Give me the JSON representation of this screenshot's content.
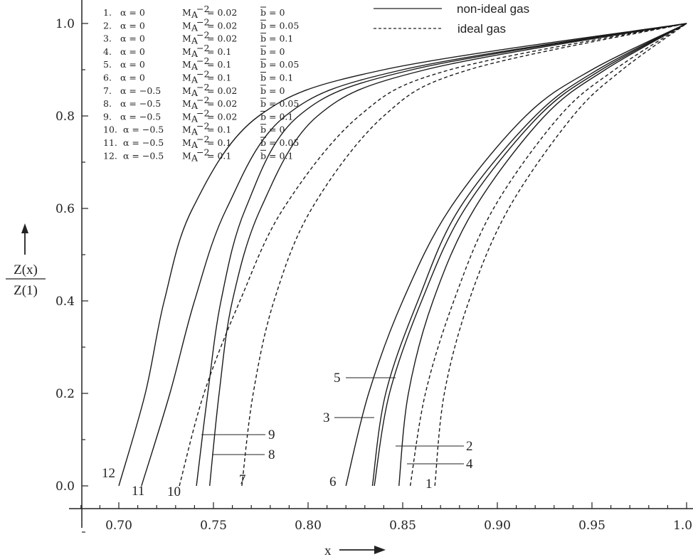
{
  "chart_data": {
    "type": "line",
    "title": "",
    "xlabel": "x",
    "ylabel_num": "Z(x)",
    "ylabel_den": "Z(1)",
    "xlim": [
      0.68,
      1.0
    ],
    "ylim": [
      0.0,
      1.0
    ],
    "x_ticks": [
      "0.70",
      "0.75",
      "0.80",
      "0.85",
      "0.90",
      "0.95",
      "1.00"
    ],
    "y_ticks": [
      "0.0",
      "0.2",
      "0.4",
      "0.6",
      "0.8",
      "1.0"
    ],
    "legend": {
      "placement": "top-center",
      "solid_label": "non-ideal gas",
      "dashed_label": "ideal gas"
    },
    "param_table": {
      "m_symbol": "M",
      "m_sub": "A",
      "m_sup": "−2",
      "b_symbol": "b",
      "rows": [
        {
          "num": "1.",
          "alpha": "α = 0",
          "m": "= 0.02",
          "b": "= 0"
        },
        {
          "num": "2.",
          "alpha": "α = 0",
          "m": "= 0.02",
          "b": "= 0.05"
        },
        {
          "num": "3.",
          "alpha": "α = 0",
          "m": "= 0.02",
          "b": "= 0.1"
        },
        {
          "num": "4.",
          "alpha": "α = 0",
          "m": "= 0.1",
          "b": "= 0"
        },
        {
          "num": "5.",
          "alpha": "α = 0",
          "m": "= 0.1",
          "b": "= 0.05"
        },
        {
          "num": "6.",
          "alpha": "α = 0",
          "m": "= 0.1",
          "b": "= 0.1"
        },
        {
          "num": "7.",
          "alpha": "α = −0.5",
          "m": "= 0.02",
          "b": "= 0"
        },
        {
          "num": "8.",
          "alpha": "α = −0.5",
          "m": "= 0.02",
          "b": "= 0.05"
        },
        {
          "num": "9.",
          "alpha": "α = −0.5",
          "m": "= 0.02",
          "b": "= 0.1"
        },
        {
          "num": "10.",
          "alpha": "α = −0.5",
          "m": "= 0.1",
          "b": "= 0"
        },
        {
          "num": "11.",
          "alpha": "α = −0.5",
          "m": "= 0.1",
          "b": "= 0.05"
        },
        {
          "num": "12.",
          "alpha": "α = −0.5",
          "m": "= 0.1",
          "b": "= 0.1"
        }
      ]
    },
    "z_levels": [
      0,
      0.2,
      0.4,
      0.6,
      0.8,
      0.9,
      1.0
    ],
    "series": [
      {
        "name": "1",
        "dashed": true,
        "x": [
          0.867,
          0.872,
          0.885,
          0.906,
          0.94,
          0.966,
          1.0
        ]
      },
      {
        "name": "2",
        "dashed": false,
        "x": [
          0.848,
          0.853,
          0.866,
          0.888,
          0.925,
          0.957,
          1.0
        ]
      },
      {
        "name": "3",
        "dashed": false,
        "x": [
          0.834,
          0.841,
          0.858,
          0.88,
          0.92,
          0.953,
          1.0
        ]
      },
      {
        "name": "4",
        "dashed": true,
        "x": [
          0.854,
          0.862,
          0.877,
          0.898,
          0.933,
          0.962,
          1.0
        ]
      },
      {
        "name": "5",
        "dashed": false,
        "x": [
          0.835,
          0.843,
          0.86,
          0.883,
          0.922,
          0.955,
          1.0
        ]
      },
      {
        "name": "6",
        "dashed": false,
        "x": [
          0.82,
          0.832,
          0.85,
          0.875,
          0.915,
          0.95,
          1.0
        ]
      },
      {
        "name": "7",
        "dashed": true,
        "x": [
          0.765,
          0.771,
          0.782,
          0.802,
          0.84,
          0.885,
          1.0
        ]
      },
      {
        "name": "8",
        "dashed": false,
        "x": [
          0.748,
          0.753,
          0.76,
          0.775,
          0.805,
          0.862,
          1.0
        ]
      },
      {
        "name": "9",
        "dashed": false,
        "x": [
          0.741,
          0.747,
          0.754,
          0.767,
          0.795,
          0.855,
          1.0
        ]
      },
      {
        "name": "10",
        "dashed": true,
        "x": [
          0.732,
          0.745,
          0.764,
          0.787,
          0.827,
          0.875,
          1.0
        ]
      },
      {
        "name": "11",
        "dashed": false,
        "x": [
          0.712,
          0.727,
          0.74,
          0.757,
          0.788,
          0.85,
          1.0
        ]
      },
      {
        "name": "12",
        "dashed": false,
        "x": [
          0.7,
          0.714,
          0.724,
          0.739,
          0.774,
          0.84,
          1.0
        ]
      }
    ]
  }
}
